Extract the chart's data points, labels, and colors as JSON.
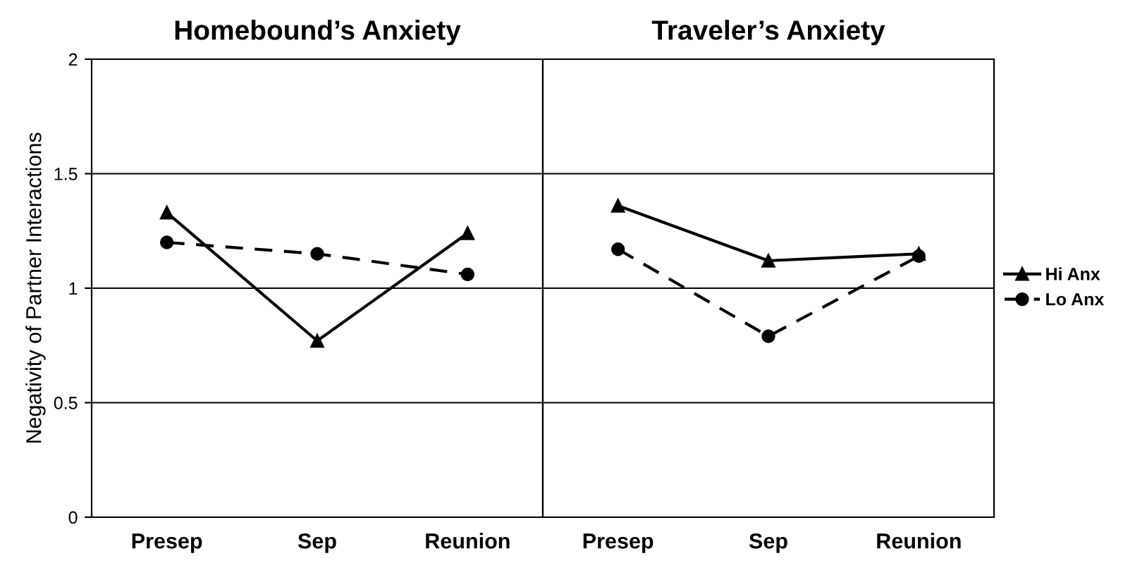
{
  "chart_data": [
    {
      "type": "line",
      "title": "Homebound’s Anxiety",
      "ylabel": "Negativity of Partner Interactions",
      "categories": [
        "Presep",
        "Sep",
        "Reunion"
      ],
      "ylim": [
        0,
        2
      ],
      "yticks": [
        0,
        0.5,
        1,
        1.5,
        2
      ],
      "grid": "y",
      "legend": false,
      "series": [
        {
          "color": "#000000",
          "marker": "triangle",
          "line_style": "solid",
          "values": [
            1.33,
            0.77,
            1.24
          ]
        },
        {
          "color": "#000000",
          "marker": "circle",
          "line_style": "dashed",
          "values": [
            1.2,
            1.15,
            1.06
          ]
        }
      ]
    },
    {
      "type": "line",
      "title": "Traveler’s Anxiety",
      "categories": [
        "Presep",
        "Sep",
        "Reunion"
      ],
      "ylim": [
        0,
        2
      ],
      "yticks": [
        0,
        0.5,
        1,
        1.5,
        2
      ],
      "grid": "y",
      "legend": "right",
      "tick_labels": "x",
      "series": [
        {
          "name": "Hi Anx",
          "color": "#000000",
          "marker": "triangle",
          "line_style": "solid",
          "values": [
            1.36,
            1.12,
            1.15
          ]
        },
        {
          "name": "Lo Anx",
          "color": "#000000",
          "marker": "circle",
          "line_style": "dashed",
          "values": [
            1.17,
            0.79,
            1.14
          ]
        }
      ]
    }
  ]
}
